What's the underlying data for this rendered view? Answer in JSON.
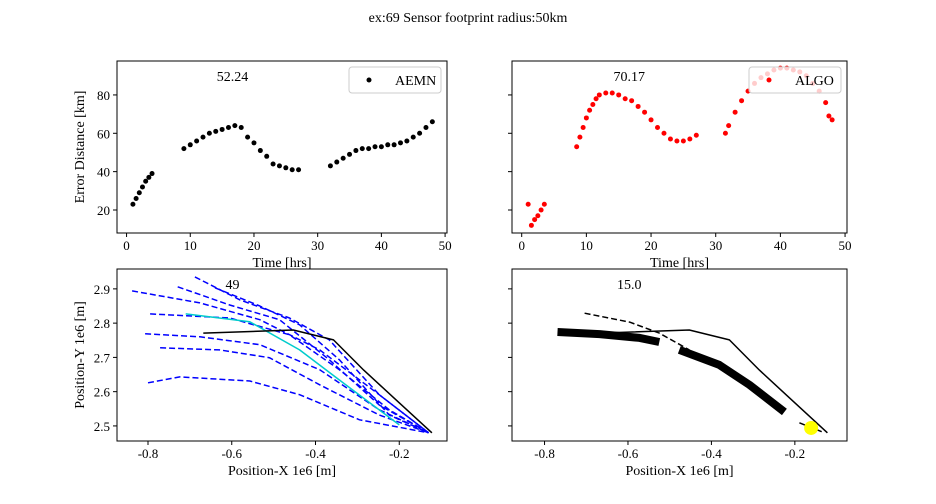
{
  "title": "ex:69  Sensor footprint radius:50km",
  "chart_data": [
    {
      "type": "scatter",
      "annotation": "52.24",
      "xlabel": "Time [hrs]",
      "ylabel": "Error Distance [km]",
      "xlim": [
        -1.5,
        50.3
      ],
      "ylim": [
        8,
        97.7
      ],
      "xticks": [
        0,
        10,
        20,
        30,
        40,
        50
      ],
      "yticks": [
        20,
        40,
        60,
        80
      ],
      "show_ytick_labels": true,
      "legend": "upper right",
      "series": [
        {
          "name": "AEMN",
          "color": "#000000",
          "kind": "scatter",
          "x": [
            1,
            1.5,
            2,
            2.5,
            3,
            3.5,
            4,
            9,
            10,
            11,
            12,
            13,
            14,
            15,
            16,
            17,
            18,
            19,
            20,
            21,
            22,
            23,
            24,
            25,
            26,
            27,
            32,
            33,
            34,
            35,
            36,
            37,
            38,
            39,
            40,
            41,
            42,
            43,
            44,
            45,
            46,
            47,
            48
          ],
          "y": [
            23,
            26,
            29,
            32,
            35,
            37,
            39,
            52,
            54,
            56,
            58,
            60,
            61,
            62,
            63,
            64,
            63,
            58,
            55,
            51,
            48,
            44,
            43,
            42,
            41,
            41,
            43,
            45,
            47,
            49,
            51,
            52,
            52,
            53,
            53,
            54,
            54,
            55,
            56,
            58,
            60,
            63,
            66
          ]
        }
      ]
    },
    {
      "type": "scatter",
      "annotation": "70.17",
      "xlabel": "Time [hrs]",
      "xlim": [
        -1.5,
        50.3
      ],
      "ylim": [
        8,
        97.7
      ],
      "xticks": [
        0,
        10,
        20,
        30,
        40,
        50
      ],
      "yticks": [
        20,
        40,
        60,
        80
      ],
      "show_ytick_labels": false,
      "legend": "upper right",
      "series": [
        {
          "name": "ALGO",
          "color": "#ff0000",
          "kind": "scatter",
          "x": [
            1,
            1.5,
            2,
            2.5,
            3,
            3.5,
            8.5,
            9,
            9.5,
            10,
            10.5,
            11,
            11.5,
            12,
            13,
            14,
            15,
            16,
            17,
            18,
            19,
            20,
            21,
            22,
            23,
            24,
            25,
            26,
            27,
            31.5,
            32,
            33,
            34,
            35,
            36,
            37,
            38,
            39,
            40,
            41,
            42,
            43,
            44,
            45,
            46,
            47,
            47.5,
            48
          ],
          "y": [
            23,
            12,
            15,
            17,
            20,
            23,
            53,
            58,
            63,
            68,
            72,
            75,
            78,
            80,
            81,
            81,
            80,
            78,
            77,
            74,
            71,
            67,
            63,
            60,
            57,
            56,
            56,
            57,
            59,
            60,
            64,
            71,
            77,
            82,
            86,
            89,
            91,
            93,
            94,
            94,
            93,
            92,
            90,
            86,
            82,
            76,
            69,
            67
          ]
        }
      ]
    },
    {
      "type": "line",
      "annotation": "49",
      "xlabel": "Position-X 1e6 [m]",
      "ylabel": "Position-Y 1e6 [m]",
      "xlim": [
        -0.874,
        -0.086
      ],
      "ylim": [
        2.456,
        2.958
      ],
      "xticks": [
        -0.8,
        -0.6,
        -0.4,
        -0.2
      ],
      "yticks": [
        2.5,
        2.6,
        2.7,
        2.8,
        2.9
      ],
      "show_ytick_labels": true,
      "series": [
        {
          "color": "#0000ff",
          "kind": "dashed",
          "x": [
            -0.838,
            -0.676,
            -0.533,
            -0.39,
            -0.248,
            -0.13
          ],
          "y": [
            2.894,
            2.859,
            2.81,
            2.722,
            2.591,
            2.48
          ]
        },
        {
          "color": "#0000ff",
          "kind": "dashed",
          "x": [
            -0.8,
            -0.724,
            -0.557,
            -0.438,
            -0.295,
            -0.13
          ],
          "y": [
            2.626,
            2.643,
            2.631,
            2.591,
            2.518,
            2.48
          ]
        },
        {
          "color": "#0000ff",
          "kind": "dashed",
          "x": [
            -0.807,
            -0.676,
            -0.533,
            -0.39,
            -0.248,
            -0.13
          ],
          "y": [
            2.769,
            2.76,
            2.737,
            2.664,
            2.547,
            2.48
          ]
        },
        {
          "color": "#0000ff",
          "kind": "dashed",
          "x": [
            -0.795,
            -0.605,
            -0.462,
            -0.343,
            -0.224,
            -0.13
          ],
          "y": [
            2.827,
            2.815,
            2.766,
            2.664,
            2.547,
            2.48
          ]
        },
        {
          "color": "#0000ff",
          "kind": "dashed",
          "x": [
            -0.688,
            -0.581,
            -0.462,
            -0.367,
            -0.248,
            -0.13
          ],
          "y": [
            2.935,
            2.868,
            2.815,
            2.751,
            2.591,
            2.48
          ]
        },
        {
          "color": "#0000ff",
          "kind": "dashed",
          "x": [
            -0.729,
            -0.605,
            -0.486,
            -0.367,
            -0.248,
            -0.13
          ],
          "y": [
            2.906,
            2.853,
            2.81,
            2.693,
            2.561,
            2.48
          ]
        },
        {
          "color": "#0000ff",
          "kind": "dashed",
          "x": [
            -0.771,
            -0.629,
            -0.51,
            -0.39,
            -0.248,
            -0.13
          ],
          "y": [
            2.728,
            2.722,
            2.699,
            2.62,
            2.532,
            2.48
          ]
        },
        {
          "color": "#0000ff",
          "kind": "dashed",
          "x": [
            -0.64,
            -0.533,
            -0.438,
            -0.343,
            -0.224,
            -0.13
          ],
          "y": [
            2.903,
            2.85,
            2.795,
            2.693,
            2.532,
            2.48
          ]
        },
        {
          "color": "#00cccc",
          "kind": "solid",
          "x": [
            -0.71,
            -0.557,
            -0.438,
            -0.343,
            -0.2
          ],
          "y": [
            2.827,
            2.804,
            2.722,
            2.634,
            2.503
          ]
        },
        {
          "color": "#000000",
          "kind": "solid",
          "x": [
            -0.668,
            -0.453,
            -0.357,
            -0.285,
            -0.213,
            -0.122
          ],
          "y": [
            2.771,
            2.78,
            2.751,
            2.663,
            2.582,
            2.48
          ]
        }
      ]
    },
    {
      "type": "line",
      "annotation": "15.0",
      "xlabel": "Position-X 1e6 [m]",
      "xlim": [
        -0.878,
        -0.075
      ],
      "ylim": [
        2.456,
        2.958
      ],
      "xticks": [
        -0.8,
        -0.6,
        -0.4,
        -0.2
      ],
      "yticks": [
        2.5,
        2.6,
        2.7,
        2.8,
        2.9
      ],
      "show_ytick_labels": false,
      "series": [
        {
          "color": "#000000",
          "kind": "solid",
          "x": [
            -0.668,
            -0.453,
            -0.357,
            -0.285,
            -0.213,
            -0.122
          ],
          "y": [
            2.771,
            2.78,
            2.751,
            2.663,
            2.582,
            2.48
          ]
        },
        {
          "color": "#000000",
          "kind": "dashed",
          "x": [
            -0.704,
            -0.596,
            -0.525,
            -0.453,
            null,
            -0.189,
            -0.129
          ],
          "y": [
            2.829,
            2.803,
            2.771,
            2.722,
            null,
            2.509,
            2.48
          ]
        },
        {
          "color": "#000000",
          "kind": "thick",
          "x": [
            -0.769,
            -0.668,
            -0.572,
            -0.525,
            null,
            -0.477,
            -0.381,
            -0.309,
            -0.225
          ],
          "y": [
            2.774,
            2.768,
            2.757,
            2.745,
            null,
            2.722,
            2.678,
            2.62,
            2.541
          ]
        },
        {
          "color": "#ffff00",
          "kind": "blob",
          "x": [
            -0.161
          ],
          "y": [
            2.494
          ]
        }
      ]
    }
  ]
}
